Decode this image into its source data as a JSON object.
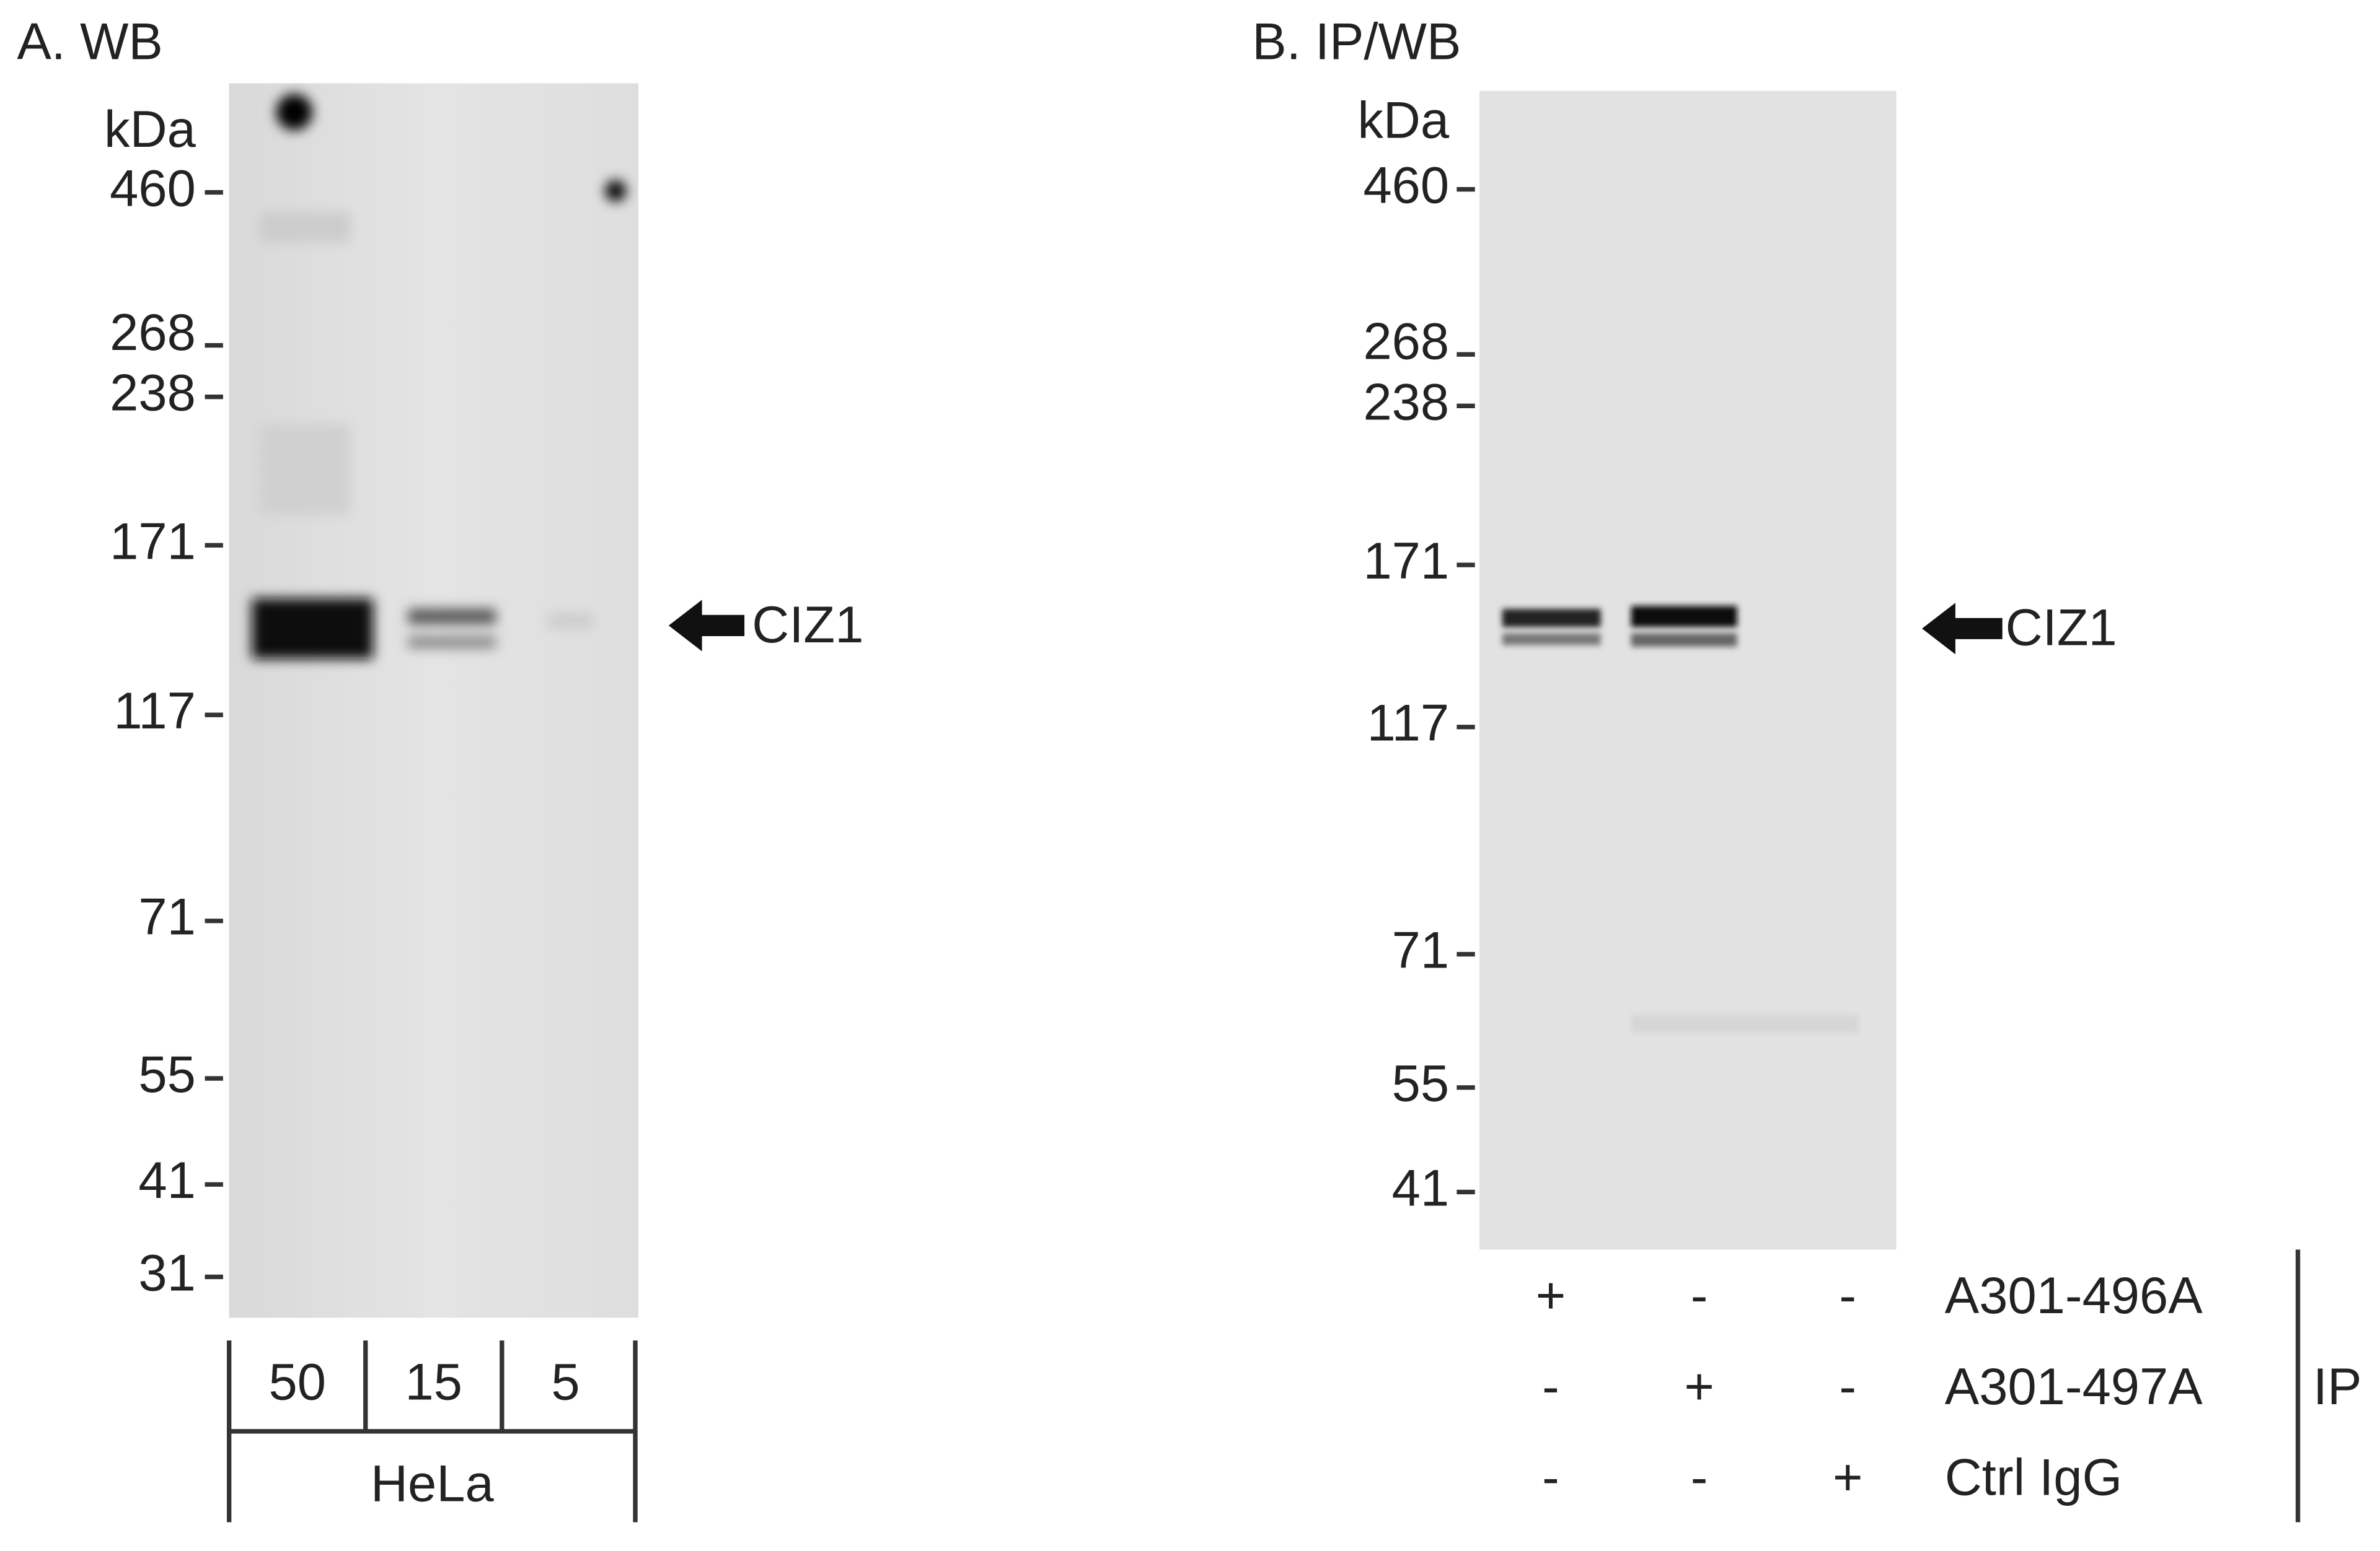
{
  "panel_a": {
    "title": "A. WB",
    "unit": "kDa",
    "markers": [
      "460",
      "268",
      "238",
      "171",
      "117",
      "71",
      "55",
      "41",
      "31"
    ],
    "lanes": [
      "50",
      "15",
      "5"
    ],
    "sample": "HeLa",
    "band_label": "CIZ1"
  },
  "panel_b": {
    "title": "B. IP/WB",
    "unit": "kDa",
    "markers": [
      "460",
      "268",
      "238",
      "171",
      "117",
      "71",
      "55",
      "41"
    ],
    "rows": [
      {
        "label": "A301-496A",
        "marks": [
          "+",
          "-",
          "-"
        ]
      },
      {
        "label": "A301-497A",
        "marks": [
          "-",
          "+",
          "-"
        ]
      },
      {
        "label": "Ctrl IgG",
        "marks": [
          "-",
          "-",
          "+"
        ]
      }
    ],
    "group_label": "IP",
    "band_label": "CIZ1"
  }
}
